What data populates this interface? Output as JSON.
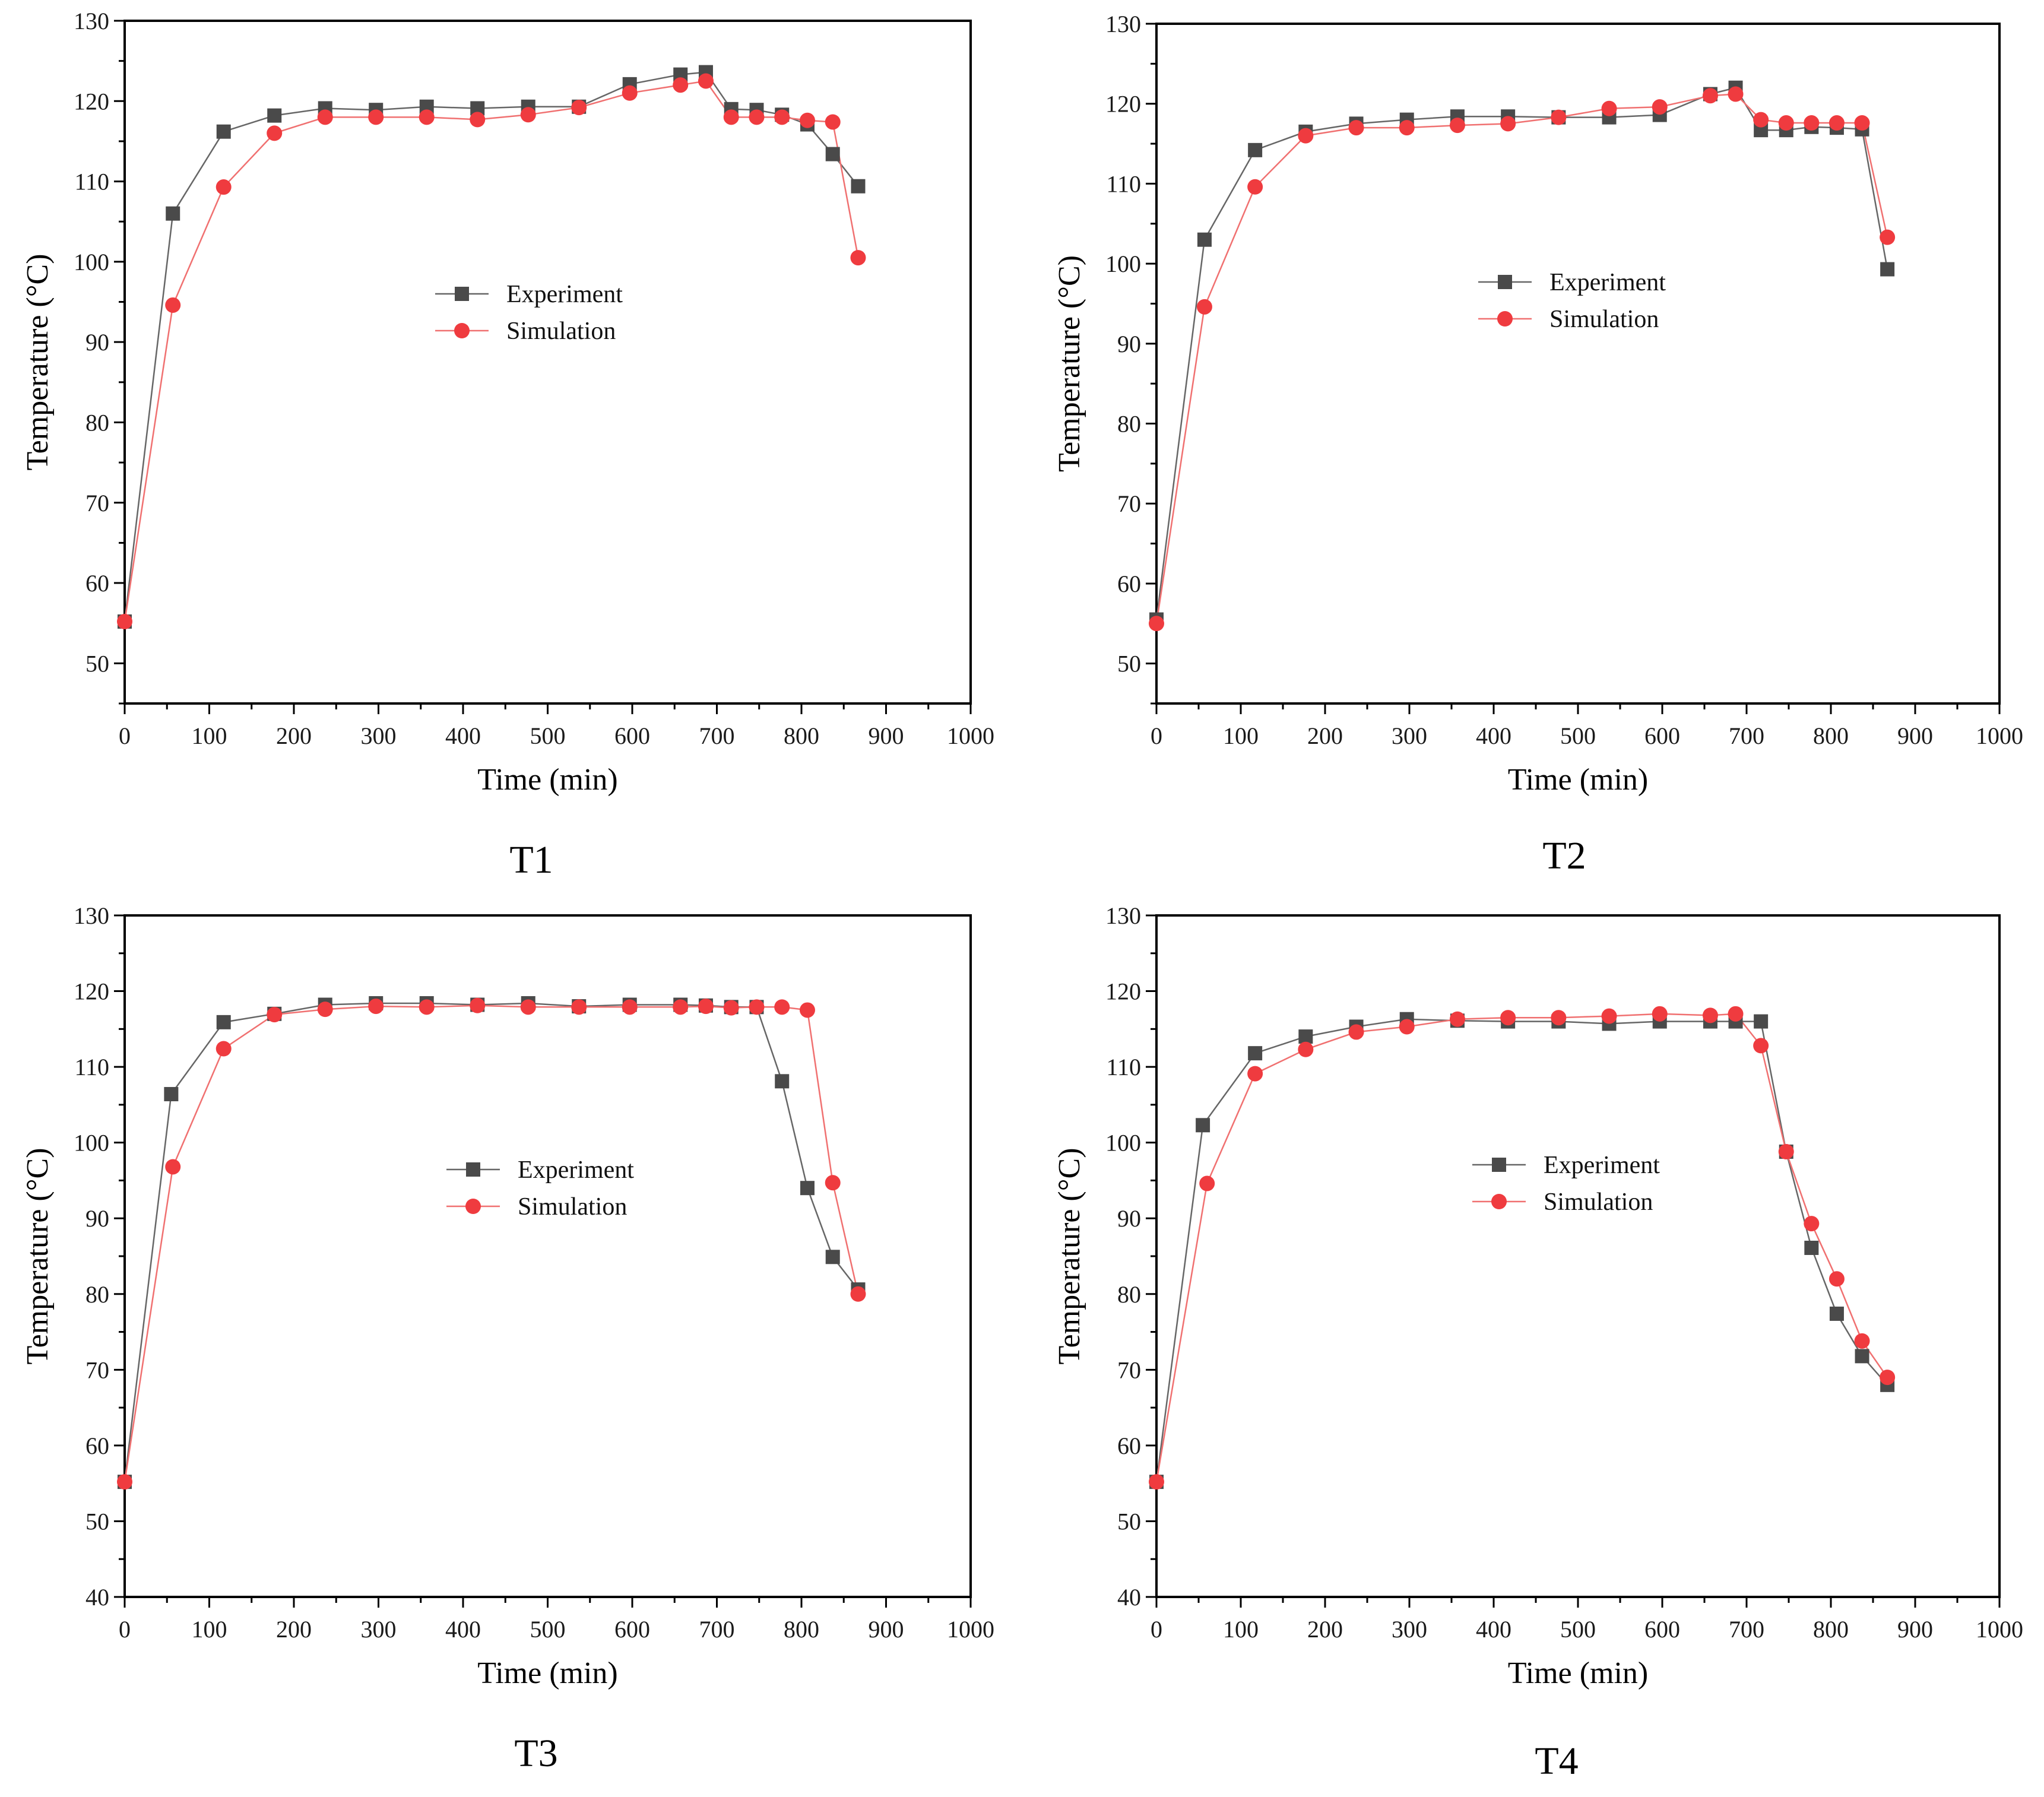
{
  "colors": {
    "experiment": "#4a4a4a",
    "simulation": "#ef3b3f",
    "simulation_line": "#f07070",
    "experiment_line": "#666666"
  },
  "chart_data": [
    {
      "type": "line",
      "caption": "T1",
      "xlabel": "Time (min)",
      "ylabel": "Temperature (°C)",
      "xlim": [
        0,
        1000
      ],
      "ylim": [
        45,
        130
      ],
      "xticks": [
        0,
        100,
        200,
        300,
        400,
        500,
        600,
        700,
        800,
        900,
        1000
      ],
      "yticks": [
        50,
        60,
        70,
        80,
        90,
        100,
        110,
        120,
        130
      ],
      "legend": {
        "position": "center-left",
        "entries": [
          "Experiment",
          "Simulation"
        ]
      },
      "series": [
        {
          "name": "Experiment",
          "marker": "square",
          "x": [
            0,
            57,
            117,
            177,
            237,
            297,
            357,
            417,
            477,
            537,
            597,
            657,
            687,
            717,
            747,
            777,
            807,
            837,
            867
          ],
          "y": [
            55.2,
            106,
            116.2,
            118.2,
            119.1,
            118.9,
            119.3,
            119.1,
            119.3,
            119.3,
            122.1,
            123.3,
            123.6,
            119,
            118.9,
            118.3,
            117.1,
            113.4,
            109.4
          ]
        },
        {
          "name": "Simulation",
          "marker": "circle",
          "x": [
            0,
            57,
            117,
            177,
            237,
            297,
            357,
            417,
            477,
            537,
            597,
            657,
            687,
            717,
            747,
            777,
            807,
            837,
            867
          ],
          "y": [
            55.2,
            94.6,
            109.3,
            116,
            118,
            118,
            118,
            117.7,
            118.3,
            119.2,
            121,
            122,
            122.5,
            118,
            118,
            118,
            117.6,
            117.4,
            100.5
          ]
        }
      ]
    },
    {
      "type": "line",
      "caption": "T2",
      "xlabel": "Time (min)",
      "ylabel": "Temperature (°C)",
      "xlim": [
        0,
        1000
      ],
      "ylim": [
        45,
        130
      ],
      "xticks": [
        0,
        100,
        200,
        300,
        400,
        500,
        600,
        700,
        800,
        900,
        1000
      ],
      "yticks": [
        50,
        60,
        70,
        80,
        90,
        100,
        110,
        120,
        130
      ],
      "legend": {
        "position": "center",
        "entries": [
          "Experiment",
          "Simulation"
        ]
      },
      "series": [
        {
          "name": "Experiment",
          "marker": "square",
          "x": [
            0,
            57,
            117,
            177,
            237,
            297,
            357,
            417,
            477,
            537,
            597,
            657,
            687,
            717,
            747,
            777,
            807,
            837,
            867
          ],
          "y": [
            55.5,
            103,
            114.2,
            116.5,
            117.5,
            118,
            118.4,
            118.4,
            118.3,
            118.3,
            118.6,
            121.2,
            122,
            116.7,
            116.7,
            117.1,
            117,
            116.8,
            99.3
          ]
        },
        {
          "name": "Simulation",
          "marker": "circle",
          "x": [
            0,
            57,
            117,
            177,
            237,
            297,
            357,
            417,
            477,
            537,
            597,
            657,
            687,
            717,
            747,
            777,
            807,
            837,
            867
          ],
          "y": [
            55,
            94.6,
            109.6,
            116,
            117,
            117,
            117.3,
            117.5,
            118.3,
            119.4,
            119.6,
            121,
            121.2,
            118,
            117.6,
            117.6,
            117.6,
            117.6,
            103.3
          ]
        }
      ]
    },
    {
      "type": "line",
      "caption": "T3",
      "xlabel": "Time (min)",
      "ylabel": "Temperature (°C)",
      "xlim": [
        0,
        1000
      ],
      "ylim": [
        40,
        130
      ],
      "xticks": [
        0,
        100,
        200,
        300,
        400,
        500,
        600,
        700,
        800,
        900,
        1000
      ],
      "yticks": [
        40,
        50,
        60,
        70,
        80,
        90,
        100,
        110,
        120,
        130
      ],
      "legend": {
        "position": "center",
        "entries": [
          "Experiment",
          "Simulation"
        ]
      },
      "series": [
        {
          "name": "Experiment",
          "marker": "square",
          "x": [
            0,
            55,
            117,
            177,
            237,
            297,
            357,
            417,
            477,
            537,
            597,
            657,
            687,
            717,
            747,
            777,
            807,
            837,
            867
          ],
          "y": [
            55.2,
            106.4,
            115.9,
            117,
            118.2,
            118.4,
            118.4,
            118.2,
            118.4,
            118,
            118.2,
            118.2,
            118.1,
            117.9,
            117.9,
            108.1,
            94,
            84.9,
            80.6
          ]
        },
        {
          "name": "Simulation",
          "marker": "circle",
          "x": [
            0,
            57,
            117,
            177,
            237,
            297,
            357,
            417,
            477,
            537,
            597,
            657,
            687,
            717,
            747,
            777,
            807,
            837,
            867
          ],
          "y": [
            55.2,
            96.8,
            112.4,
            116.9,
            117.6,
            118,
            117.9,
            118.1,
            117.9,
            117.9,
            117.9,
            117.9,
            118,
            117.8,
            117.9,
            117.9,
            117.5,
            94.7,
            80
          ]
        }
      ]
    },
    {
      "type": "line",
      "caption": "T4",
      "xlabel": "Time (min)",
      "ylabel": "Temperature (°C)",
      "xlim": [
        0,
        1000
      ],
      "ylim": [
        40,
        130
      ],
      "xticks": [
        0,
        100,
        200,
        300,
        400,
        500,
        600,
        700,
        800,
        900,
        1000
      ],
      "yticks": [
        40,
        50,
        60,
        70,
        80,
        90,
        100,
        110,
        120,
        130
      ],
      "legend": {
        "position": "center",
        "entries": [
          "Experiment",
          "Simulation"
        ]
      },
      "series": [
        {
          "name": "Experiment",
          "marker": "square",
          "x": [
            0,
            55,
            117,
            177,
            237,
            297,
            357,
            417,
            477,
            537,
            597,
            657,
            687,
            717,
            747,
            777,
            807,
            837,
            867
          ],
          "y": [
            55.2,
            102.3,
            111.8,
            114,
            115.3,
            116.3,
            116.1,
            116,
            116,
            115.7,
            116,
            116,
            116,
            116,
            98.8,
            86.1,
            77.4,
            71.8,
            68
          ]
        },
        {
          "name": "Simulation",
          "marker": "circle",
          "x": [
            0,
            60,
            117,
            177,
            237,
            297,
            357,
            417,
            477,
            537,
            597,
            657,
            687,
            717,
            747,
            777,
            807,
            837,
            867
          ],
          "y": [
            55.2,
            94.6,
            109.1,
            112.3,
            114.6,
            115.3,
            116.3,
            116.5,
            116.5,
            116.7,
            117,
            116.8,
            117,
            112.8,
            98.8,
            89.3,
            82,
            73.8,
            69
          ]
        }
      ]
    }
  ]
}
